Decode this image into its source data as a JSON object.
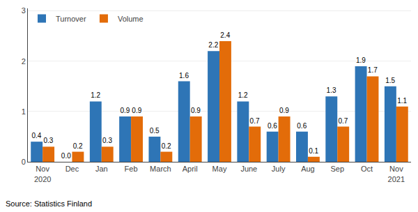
{
  "chart_data": {
    "type": "bar",
    "categories": [
      "Nov\n2020",
      "Dec",
      "Jan",
      "Feb",
      "March",
      "April",
      "May",
      "June",
      "July",
      "Aug",
      "Sep",
      "Oct",
      "Nov\n2021"
    ],
    "series": [
      {
        "name": "Turnover",
        "color": "#2E75B6",
        "values": [
          0.4,
          0.0,
          1.2,
          0.9,
          0.5,
          1.6,
          2.2,
          1.2,
          0.6,
          0.6,
          1.3,
          1.9,
          1.5
        ],
        "value_labels": [
          "0.4",
          "0.0",
          "1.2",
          "0.9",
          "0.5",
          "1.6",
          "2.2",
          "1.2",
          "0.6",
          "0.6",
          "1.3",
          "1.9",
          "1.5"
        ]
      },
      {
        "name": "Volume",
        "color": "#E36C09",
        "values": [
          0.3,
          0.2,
          0.3,
          0.9,
          0.2,
          0.9,
          2.4,
          0.7,
          0.9,
          0.1,
          0.7,
          1.7,
          1.1
        ],
        "value_labels": [
          "0.3",
          "0.2",
          "0.3",
          "0.9",
          "0.2",
          "0.9",
          "2.4",
          "0.7",
          "0.9",
          "0.1",
          "0.7",
          "1.7",
          "1.1"
        ]
      }
    ],
    "ylim": [
      0,
      3.05
    ],
    "yticks": [
      0,
      1,
      2,
      3
    ],
    "grid": true,
    "legend": "upper left",
    "data_labels": true,
    "annotations": [
      {
        "text": "Source: Statistics Finland"
      }
    ]
  }
}
